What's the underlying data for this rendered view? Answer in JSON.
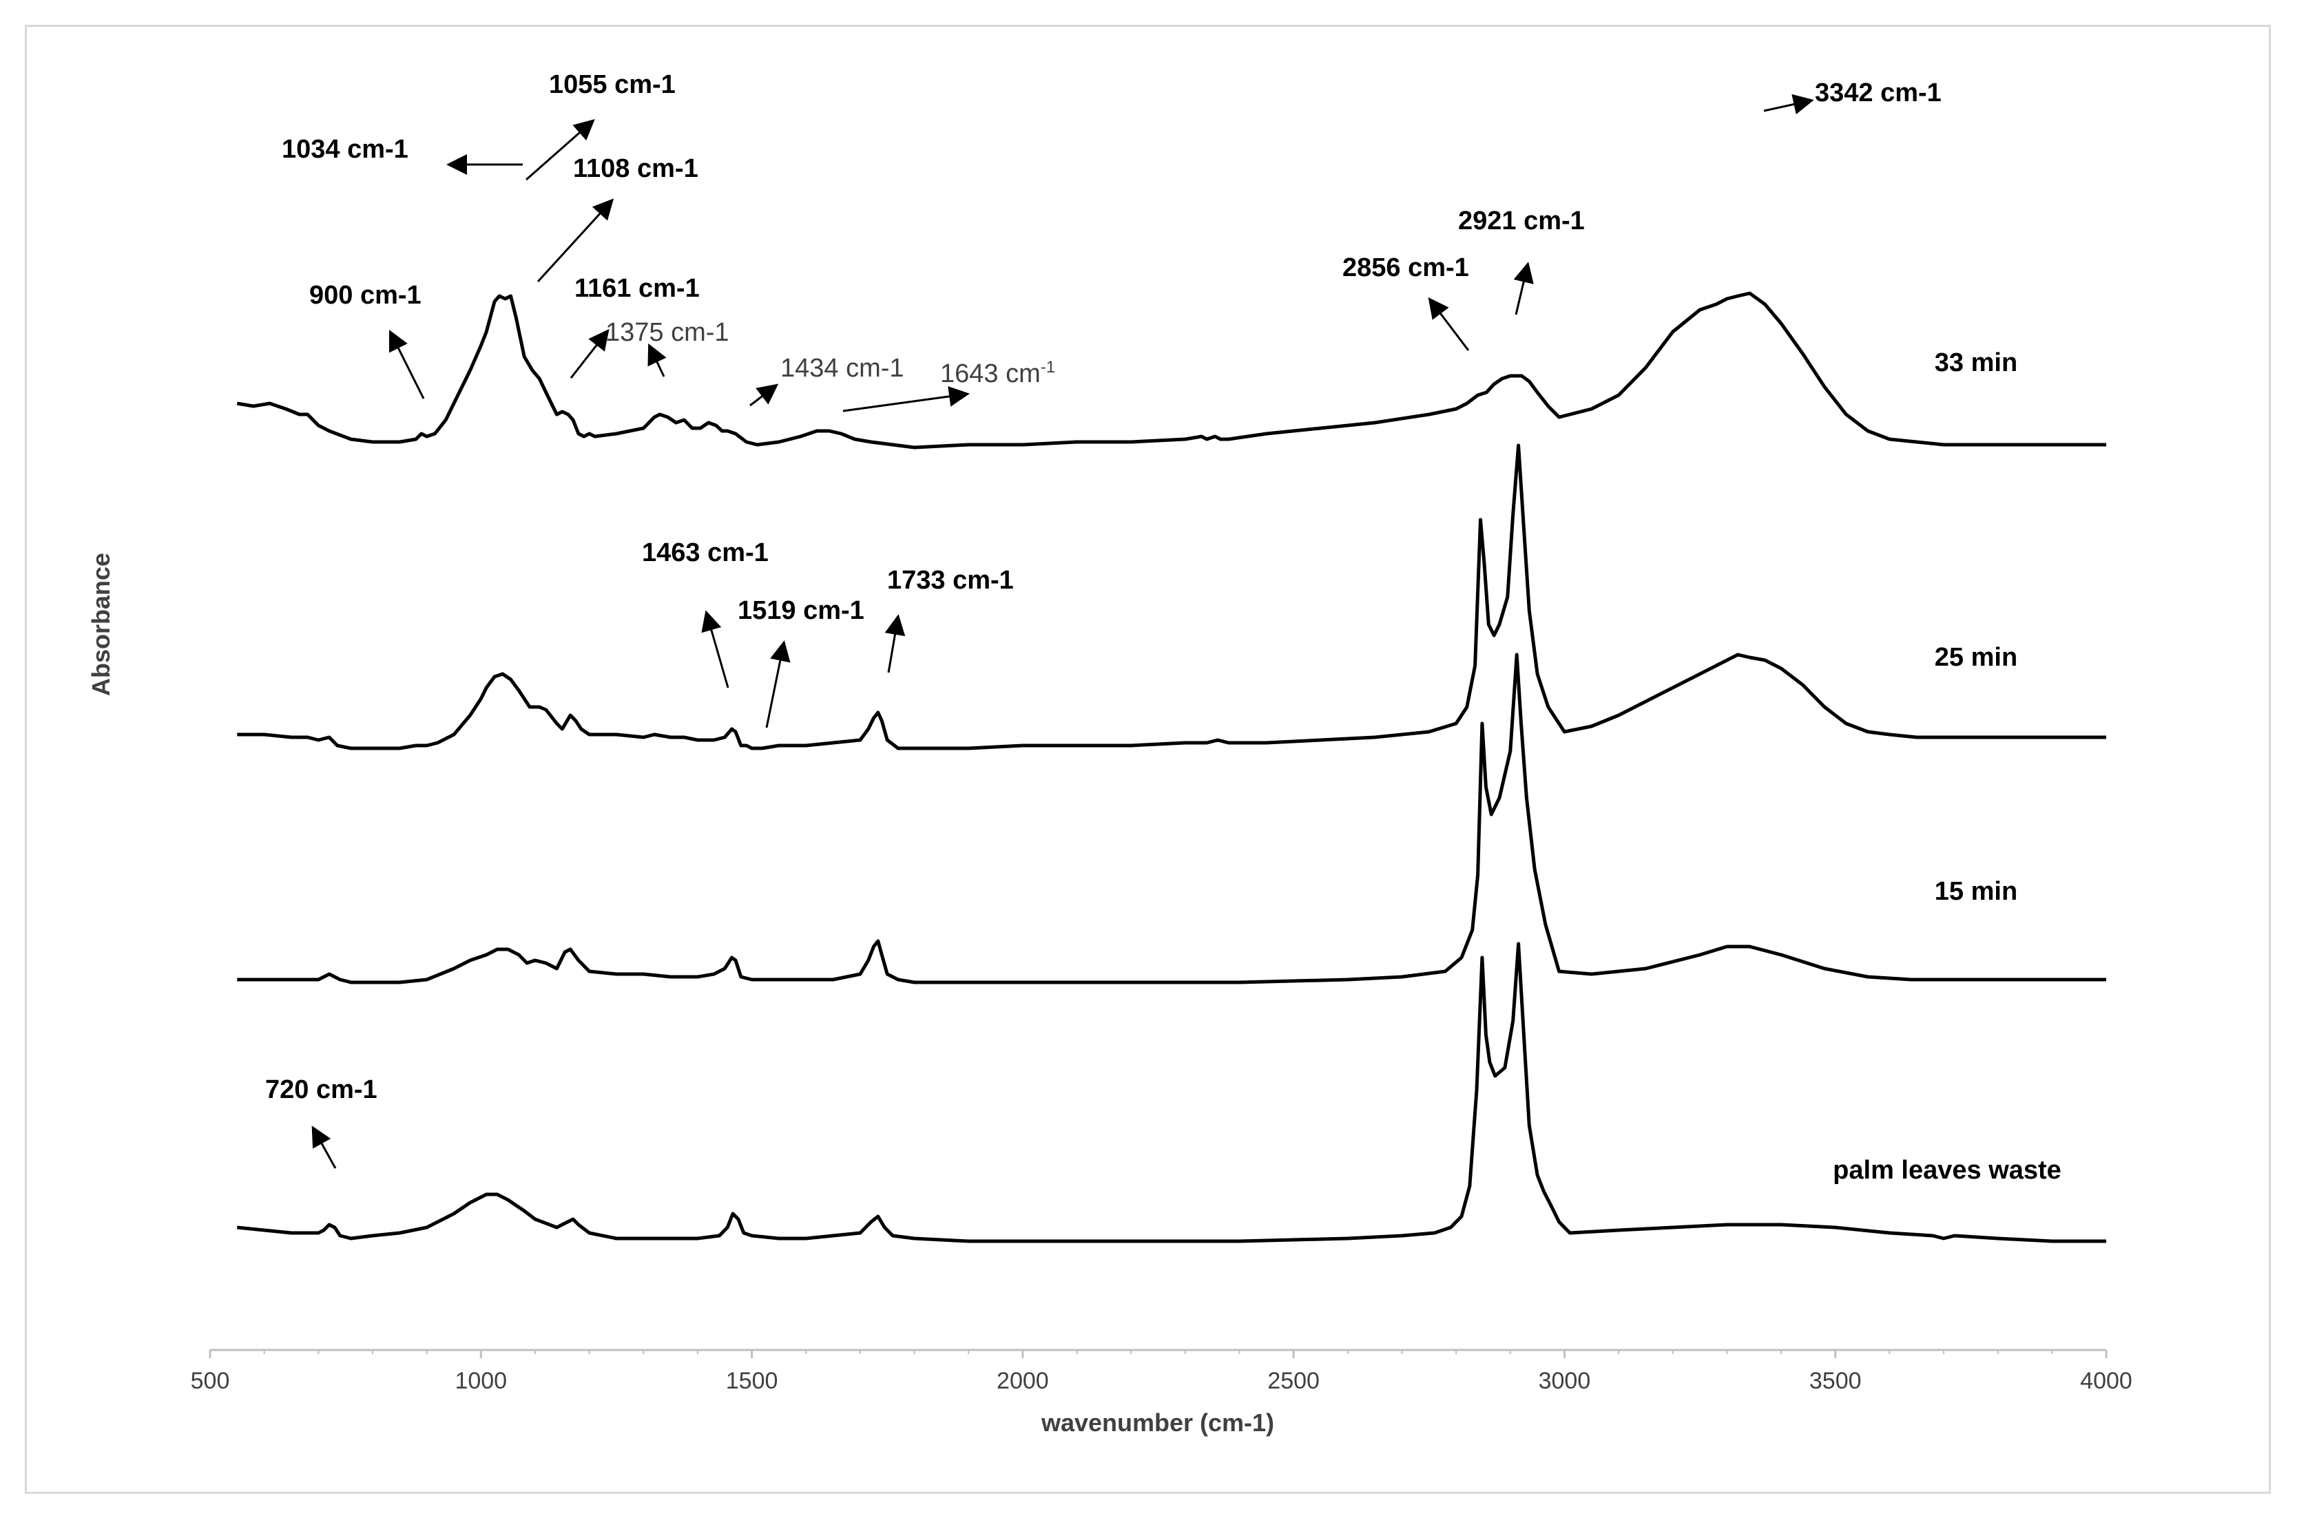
{
  "chart_data": {
    "type": "line",
    "title": "",
    "xlabel": "wavenumber (cm-1)",
    "ylabel": "Absorbance",
    "xlim": [
      500,
      4000
    ],
    "xticks": [
      500,
      1000,
      1500,
      2000,
      2500,
      3000,
      3500,
      4000
    ],
    "grid": false,
    "series": [
      {
        "name": "33 min",
        "x": [
          550,
          580,
          610,
          640,
          665,
          680,
          700,
          720,
          760,
          800,
          850,
          880,
          890,
          900,
          915,
          935,
          960,
          980,
          1000,
          1010,
          1025,
          1034,
          1045,
          1055,
          1065,
          1080,
          1095,
          1108,
          1120,
          1130,
          1140,
          1150,
          1161,
          1170,
          1180,
          1190,
          1200,
          1210,
          1250,
          1300,
          1320,
          1330,
          1345,
          1360,
          1375,
          1390,
          1405,
          1420,
          1434,
          1445,
          1455,
          1470,
          1490,
          1510,
          1550,
          1590,
          1620,
          1643,
          1665,
          1690,
          1720,
          1760,
          1800,
          1900,
          2000,
          2100,
          2160,
          2200,
          2300,
          2330,
          2340,
          2355,
          2365,
          2380,
          2450,
          2550,
          2650,
          2750,
          2800,
          2820,
          2840,
          2856,
          2870,
          2885,
          2900,
          2921,
          2935,
          2950,
          2970,
          2990,
          3050,
          3100,
          3150,
          3200,
          3250,
          3280,
          3300,
          3320,
          3342,
          3370,
          3400,
          3440,
          3480,
          3520,
          3560,
          3600,
          3650,
          3700,
          3800,
          3900,
          4000
        ],
        "values": [
          0.84,
          0.83,
          0.84,
          0.82,
          0.8,
          0.8,
          0.76,
          0.74,
          0.71,
          0.7,
          0.7,
          0.71,
          0.73,
          0.72,
          0.73,
          0.78,
          0.88,
          0.96,
          1.05,
          1.1,
          1.21,
          1.23,
          1.22,
          1.23,
          1.15,
          1.01,
          0.96,
          0.93,
          0.88,
          0.84,
          0.8,
          0.81,
          0.8,
          0.78,
          0.73,
          0.72,
          0.73,
          0.72,
          0.73,
          0.75,
          0.79,
          0.8,
          0.79,
          0.77,
          0.78,
          0.75,
          0.75,
          0.77,
          0.76,
          0.74,
          0.74,
          0.73,
          0.7,
          0.69,
          0.7,
          0.72,
          0.74,
          0.74,
          0.73,
          0.71,
          0.7,
          0.69,
          0.68,
          0.69,
          0.69,
          0.7,
          0.7,
          0.7,
          0.71,
          0.72,
          0.71,
          0.72,
          0.71,
          0.71,
          0.73,
          0.75,
          0.77,
          0.8,
          0.82,
          0.84,
          0.87,
          0.88,
          0.91,
          0.93,
          0.94,
          0.94,
          0.92,
          0.88,
          0.83,
          0.79,
          0.82,
          0.87,
          0.97,
          1.1,
          1.18,
          1.2,
          1.22,
          1.23,
          1.24,
          1.2,
          1.13,
          1.02,
          0.9,
          0.8,
          0.74,
          0.71,
          0.7,
          0.69,
          0.69,
          0.69,
          0.69
        ]
      },
      {
        "name": "25 min",
        "x": [
          550,
          600,
          650,
          680,
          700,
          720,
          735,
          760,
          800,
          850,
          880,
          900,
          920,
          950,
          980,
          1000,
          1010,
          1025,
          1040,
          1055,
          1070,
          1090,
          1108,
          1120,
          1140,
          1150,
          1165,
          1175,
          1185,
          1200,
          1250,
          1300,
          1320,
          1350,
          1375,
          1400,
          1430,
          1450,
          1463,
          1470,
          1480,
          1490,
          1500,
          1519,
          1550,
          1600,
          1650,
          1700,
          1715,
          1725,
          1733,
          1740,
          1750,
          1770,
          1800,
          1900,
          2000,
          2100,
          2160,
          2200,
          2300,
          2340,
          2360,
          2380,
          2450,
          2550,
          2650,
          2750,
          2800,
          2820,
          2835,
          2845,
          2852,
          2860,
          2870,
          2880,
          2895,
          2905,
          2915,
          2925,
          2935,
          2950,
          2970,
          3000,
          3050,
          3100,
          3150,
          3200,
          3250,
          3290,
          3320,
          3342,
          3370,
          3400,
          3440,
          3480,
          3520,
          3560,
          3600,
          3650,
          3700,
          3800,
          3900,
          4000
        ],
        "values": [
          0.4,
          0.4,
          0.39,
          0.39,
          0.38,
          0.39,
          0.36,
          0.35,
          0.35,
          0.35,
          0.36,
          0.36,
          0.37,
          0.4,
          0.47,
          0.53,
          0.57,
          0.61,
          0.62,
          0.6,
          0.56,
          0.5,
          0.5,
          0.49,
          0.44,
          0.42,
          0.47,
          0.45,
          0.42,
          0.4,
          0.4,
          0.39,
          0.4,
          0.39,
          0.39,
          0.38,
          0.38,
          0.39,
          0.42,
          0.41,
          0.36,
          0.36,
          0.35,
          0.35,
          0.36,
          0.36,
          0.37,
          0.38,
          0.42,
          0.46,
          0.48,
          0.45,
          0.38,
          0.35,
          0.35,
          0.35,
          0.36,
          0.36,
          0.36,
          0.36,
          0.37,
          0.37,
          0.38,
          0.37,
          0.37,
          0.38,
          0.39,
          0.41,
          0.44,
          0.5,
          0.65,
          1.18,
          1.02,
          0.8,
          0.76,
          0.8,
          0.9,
          1.2,
          1.45,
          1.15,
          0.85,
          0.62,
          0.5,
          0.41,
          0.43,
          0.47,
          0.52,
          0.57,
          0.62,
          0.66,
          0.69,
          0.68,
          0.67,
          0.64,
          0.58,
          0.5,
          0.44,
          0.41,
          0.4,
          0.39,
          0.39,
          0.39,
          0.39,
          0.39
        ]
      },
      {
        "name": "15 min",
        "x": [
          550,
          600,
          650,
          700,
          710,
          720,
          730,
          740,
          760,
          800,
          850,
          900,
          950,
          980,
          1010,
          1030,
          1050,
          1070,
          1085,
          1100,
          1120,
          1140,
          1155,
          1165,
          1180,
          1200,
          1250,
          1300,
          1350,
          1400,
          1430,
          1450,
          1463,
          1470,
          1480,
          1500,
          1550,
          1600,
          1650,
          1700,
          1715,
          1725,
          1733,
          1740,
          1750,
          1770,
          1800,
          1900,
          2000,
          2200,
          2400,
          2600,
          2700,
          2780,
          2810,
          2830,
          2840,
          2848,
          2855,
          2865,
          2880,
          2900,
          2912,
          2920,
          2930,
          2945,
          2965,
          2990,
          3050,
          3150,
          3250,
          3300,
          3342,
          3400,
          3480,
          3560,
          3640,
          3700,
          3800,
          3900,
          4000
        ],
        "values": [
          0.12,
          0.12,
          0.12,
          0.12,
          0.13,
          0.14,
          0.13,
          0.12,
          0.11,
          0.11,
          0.11,
          0.12,
          0.16,
          0.19,
          0.21,
          0.23,
          0.23,
          0.21,
          0.18,
          0.19,
          0.18,
          0.16,
          0.22,
          0.23,
          0.19,
          0.15,
          0.14,
          0.14,
          0.13,
          0.13,
          0.14,
          0.16,
          0.2,
          0.19,
          0.13,
          0.12,
          0.12,
          0.12,
          0.12,
          0.14,
          0.19,
          0.24,
          0.26,
          0.21,
          0.14,
          0.12,
          0.11,
          0.11,
          0.11,
          0.11,
          0.11,
          0.12,
          0.13,
          0.15,
          0.2,
          0.3,
          0.5,
          1.05,
          0.82,
          0.72,
          0.78,
          0.95,
          1.3,
          1.05,
          0.78,
          0.52,
          0.32,
          0.15,
          0.14,
          0.16,
          0.21,
          0.24,
          0.24,
          0.21,
          0.16,
          0.13,
          0.12,
          0.12,
          0.12,
          0.12,
          0.12
        ]
      },
      {
        "name": "palm leaves waste",
        "x": [
          550,
          600,
          650,
          700,
          710,
          720,
          730,
          740,
          760,
          800,
          850,
          900,
          950,
          980,
          1010,
          1030,
          1050,
          1080,
          1100,
          1140,
          1160,
          1170,
          1180,
          1200,
          1250,
          1300,
          1350,
          1400,
          1440,
          1455,
          1465,
          1475,
          1485,
          1500,
          1550,
          1600,
          1650,
          1700,
          1720,
          1733,
          1745,
          1760,
          1800,
          1900,
          2000,
          2200,
          2400,
          2600,
          2700,
          2760,
          2790,
          2810,
          2825,
          2838,
          2848,
          2855,
          2862,
          2872,
          2890,
          2905,
          2915,
          2925,
          2935,
          2950,
          2962,
          2975,
          2990,
          3010,
          3100,
          3200,
          3300,
          3350,
          3400,
          3500,
          3600,
          3680,
          3700,
          3720,
          3800,
          3900,
          4000
        ],
        "values": [
          -0.3,
          -0.31,
          -0.32,
          -0.32,
          -0.31,
          -0.29,
          -0.3,
          -0.33,
          -0.34,
          -0.33,
          -0.32,
          -0.3,
          -0.25,
          -0.21,
          -0.18,
          -0.18,
          -0.2,
          -0.24,
          -0.27,
          -0.3,
          -0.28,
          -0.27,
          -0.29,
          -0.32,
          -0.34,
          -0.34,
          -0.34,
          -0.34,
          -0.33,
          -0.3,
          -0.25,
          -0.27,
          -0.32,
          -0.33,
          -0.34,
          -0.34,
          -0.33,
          -0.32,
          -0.28,
          -0.26,
          -0.3,
          -0.33,
          -0.34,
          -0.35,
          -0.35,
          -0.35,
          -0.35,
          -0.34,
          -0.33,
          -0.32,
          -0.3,
          -0.26,
          -0.15,
          0.2,
          0.68,
          0.4,
          0.3,
          0.25,
          0.28,
          0.45,
          0.73,
          0.4,
          0.07,
          -0.11,
          -0.17,
          -0.22,
          -0.28,
          -0.32,
          -0.31,
          -0.3,
          -0.29,
          -0.29,
          -0.29,
          -0.3,
          -0.32,
          -0.33,
          -0.34,
          -0.33,
          -0.34,
          -0.35,
          -0.35
        ]
      }
    ],
    "annotations": [
      {
        "text": "1055 cm-1"
      },
      {
        "text": "1034 cm-1"
      },
      {
        "text": "1108 cm-1"
      },
      {
        "text": "900 cm-1"
      },
      {
        "text": "1161 cm-1"
      },
      {
        "text": "1375 cm-1"
      },
      {
        "text": "1434 cm-1"
      },
      {
        "text": "1643 cm",
        "sup": "-1"
      },
      {
        "text": "2856 cm-1"
      },
      {
        "text": "2921 cm-1"
      },
      {
        "text": "3342 cm-1"
      },
      {
        "text": "1463 cm-1"
      },
      {
        "text": "1519 cm-1"
      },
      {
        "text": "1733 cm-1"
      },
      {
        "text": "720 cm-1"
      }
    ]
  }
}
